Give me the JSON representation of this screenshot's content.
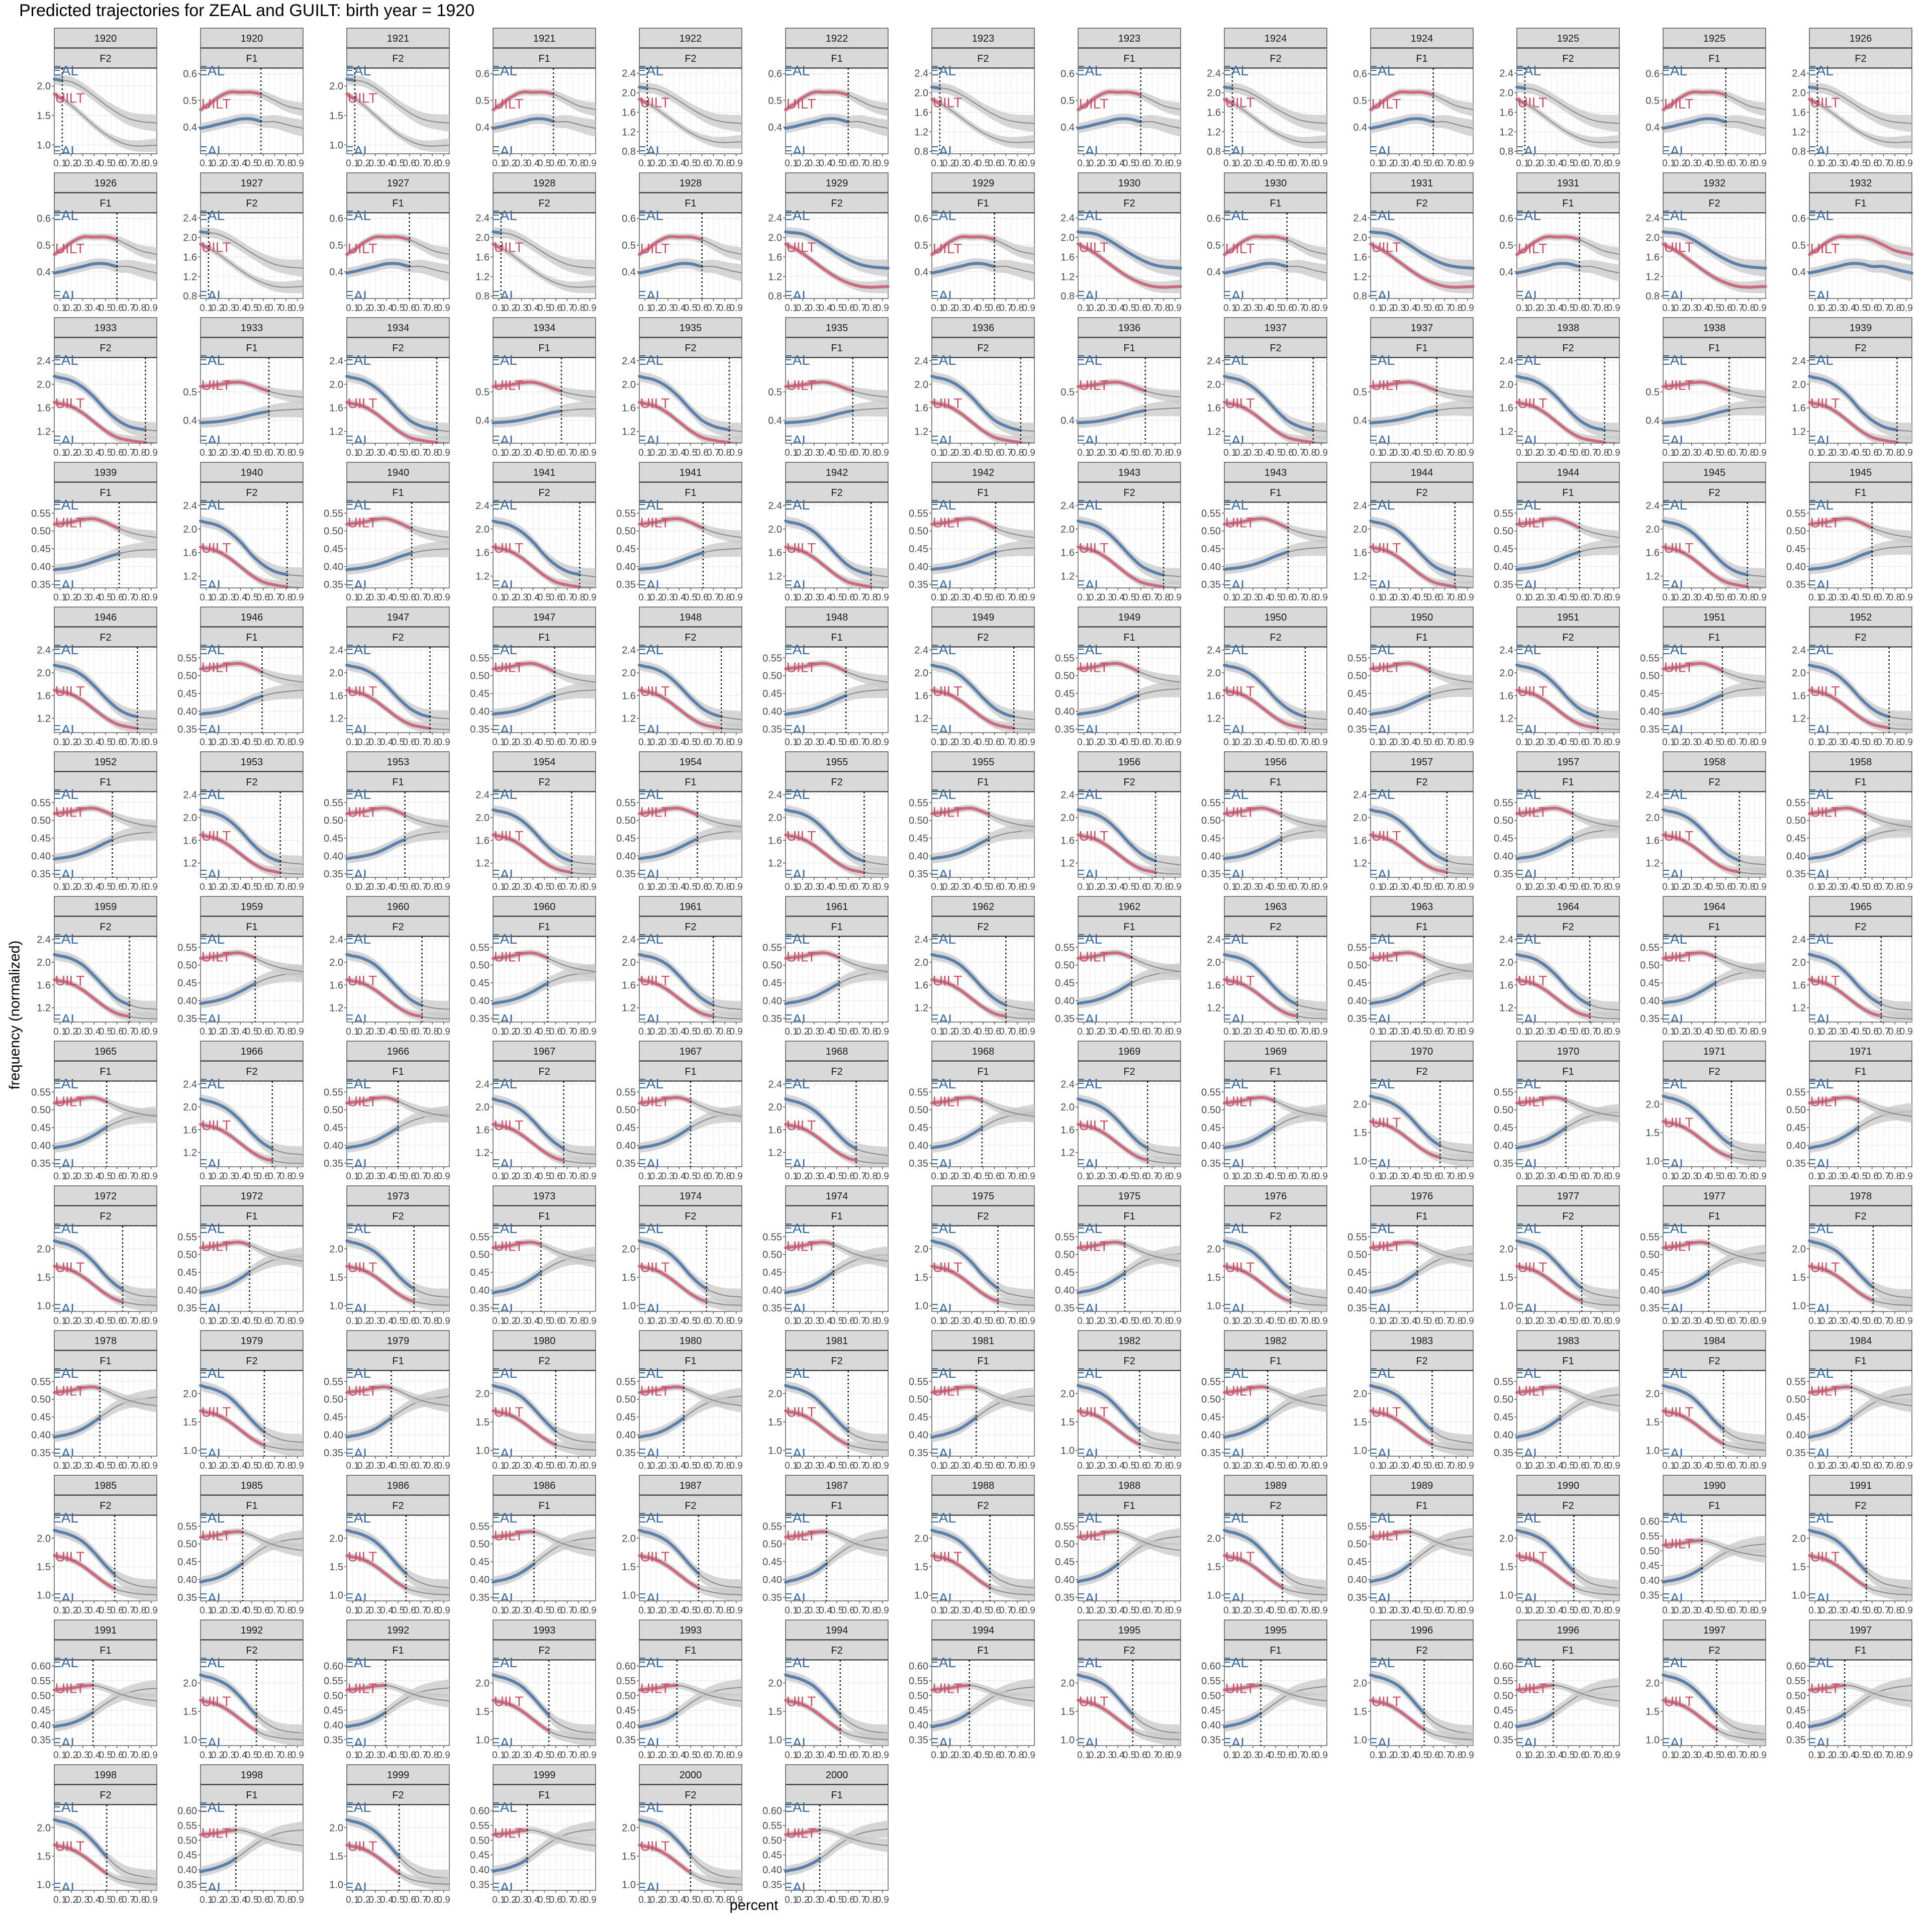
{
  "title": "Predicted trajectories for ZEAL and GUILT: birth year = 1920",
  "xlabel": "percent",
  "ylabel": "frequency (normalized)",
  "colors": {
    "zeal": "#3b6aa0",
    "guilt": "#c8506a",
    "ribbon": "#c8c8c8",
    "strip": "#d9d9d9",
    "grid": "#ebebeb"
  },
  "series_labels": {
    "zeal": "ZEAL",
    "guilt": "GUILT"
  },
  "chart_data": {
    "type": "line",
    "x_ticks": [
      0.1,
      0.2,
      0.3,
      0.4,
      0.5,
      0.6,
      0.7,
      0.8,
      0.9
    ],
    "x_tick_labels": [
      "0.1",
      "0.2",
      "0.3",
      "0.4",
      "0.5",
      "0.6",
      "0.7",
      "0.8",
      "0.9"
    ],
    "xlim": [
      0.05,
      0.95
    ],
    "facets": [
      {
        "year": "1920",
        "formant": "F2",
        "ylim": [
          0.85,
          2.3
        ],
        "yticks": [
          "1.0",
          "1.5",
          "2.0"
        ],
        "zeal": [
          2.1,
          2.07,
          1.97,
          1.83,
          1.68,
          1.55,
          1.45,
          1.4,
          1.38
        ],
        "guilt": [
          1.8,
          1.67,
          1.5,
          1.33,
          1.18,
          1.07,
          1.0,
          0.98,
          0.99
        ],
        "cutoff": 0.12
      },
      {
        "year": "1920",
        "formant": "F1",
        "ylim": [
          0.3,
          0.62
        ],
        "yticks": [
          "0.4",
          "0.5",
          "0.6"
        ],
        "zeal": [
          0.4,
          0.41,
          0.42,
          0.43,
          0.43,
          0.42,
          0.42,
          0.41,
          0.4
        ],
        "guilt": [
          0.48,
          0.51,
          0.53,
          0.53,
          0.53,
          0.52,
          0.5,
          0.48,
          0.47
        ],
        "cutoff": 0.58
      },
      {
        "year": "1921",
        "formant": "F2",
        "ylim": [
          0.85,
          2.3
        ],
        "yticks": [
          "1.0",
          "1.5",
          "2.0"
        ],
        "zeal": [
          2.1,
          2.07,
          1.97,
          1.83,
          1.68,
          1.55,
          1.45,
          1.4,
          1.38
        ],
        "guilt": [
          1.8,
          1.67,
          1.5,
          1.33,
          1.18,
          1.07,
          1.0,
          0.98,
          0.99
        ],
        "cutoff": 0.12
      },
      {
        "year": "1921",
        "formant": "F1",
        "ylim": [
          0.3,
          0.62
        ],
        "yticks": [
          "0.4",
          "0.5",
          "0.6"
        ],
        "zeal": [
          0.4,
          0.41,
          0.42,
          0.43,
          0.43,
          0.42,
          0.42,
          0.41,
          0.4
        ],
        "guilt": [
          0.48,
          0.51,
          0.53,
          0.53,
          0.53,
          0.52,
          0.5,
          0.48,
          0.47
        ],
        "cutoff": 0.58
      },
      {
        "year": "1922",
        "formant": "F2",
        "ylim": [
          0.75,
          2.5
        ],
        "yticks": [
          "0.8",
          "1.2",
          "1.6",
          "2.0",
          "2.4"
        ],
        "zeal": [
          2.1,
          2.07,
          1.97,
          1.83,
          1.68,
          1.55,
          1.45,
          1.4,
          1.38
        ],
        "guilt": [
          1.8,
          1.67,
          1.5,
          1.33,
          1.18,
          1.07,
          1.0,
          0.98,
          0.99
        ],
        "cutoff": 0.12
      },
      {
        "year": "1922",
        "formant": "F1",
        "ylim": [
          0.3,
          0.62
        ],
        "yticks": [
          "0.4",
          "0.5",
          "0.6"
        ],
        "zeal": [
          0.4,
          0.41,
          0.42,
          0.43,
          0.43,
          0.42,
          0.42,
          0.41,
          0.4
        ],
        "guilt": [
          0.48,
          0.51,
          0.53,
          0.53,
          0.53,
          0.52,
          0.5,
          0.48,
          0.47
        ],
        "cutoff": 0.6
      },
      {
        "year": "1923",
        "formant": "F2",
        "ylim": [
          0.75,
          2.5
        ],
        "yticks": [
          "0.8",
          "1.2",
          "1.6",
          "2.0",
          "2.4"
        ],
        "zeal": [
          2.1,
          2.07,
          1.97,
          1.83,
          1.68,
          1.55,
          1.45,
          1.4,
          1.38
        ],
        "guilt": [
          1.8,
          1.67,
          1.5,
          1.33,
          1.18,
          1.07,
          1.0,
          0.98,
          0.99
        ],
        "cutoff": 0.12
      },
      {
        "year": "1923",
        "formant": "F1",
        "ylim": [
          0.3,
          0.62
        ],
        "yticks": [
          "0.4",
          "0.5",
          "0.6"
        ],
        "zeal": [
          0.4,
          0.41,
          0.42,
          0.43,
          0.43,
          0.42,
          0.42,
          0.41,
          0.4
        ],
        "guilt": [
          0.48,
          0.51,
          0.53,
          0.53,
          0.53,
          0.52,
          0.5,
          0.48,
          0.47
        ],
        "cutoff": 0.6
      },
      {
        "year": "1924",
        "formant": "F2",
        "ylim": [
          0.75,
          2.5
        ],
        "yticks": [
          "0.8",
          "1.2",
          "1.6",
          "2.0",
          "2.4"
        ],
        "zeal": [
          2.1,
          2.07,
          1.97,
          1.83,
          1.68,
          1.55,
          1.45,
          1.4,
          1.38
        ],
        "guilt": [
          1.8,
          1.67,
          1.5,
          1.33,
          1.18,
          1.07,
          1.0,
          0.98,
          0.99
        ],
        "cutoff": 0.12
      },
      {
        "year": "1924",
        "formant": "F1",
        "ylim": [
          0.3,
          0.62
        ],
        "yticks": [
          "0.4",
          "0.5",
          "0.6"
        ],
        "zeal": [
          0.4,
          0.41,
          0.42,
          0.43,
          0.43,
          0.42,
          0.42,
          0.41,
          0.4
        ],
        "guilt": [
          0.48,
          0.51,
          0.53,
          0.53,
          0.53,
          0.52,
          0.5,
          0.48,
          0.47
        ],
        "cutoff": 0.6
      },
      {
        "year": "1925",
        "formant": "F2",
        "ylim": [
          0.75,
          2.5
        ],
        "yticks": [
          "0.8",
          "1.2",
          "1.6",
          "2.0",
          "2.4"
        ],
        "zeal": [
          2.1,
          2.07,
          1.97,
          1.83,
          1.68,
          1.55,
          1.45,
          1.4,
          1.38
        ],
        "guilt": [
          1.8,
          1.67,
          1.5,
          1.33,
          1.18,
          1.07,
          1.0,
          0.98,
          0.99
        ],
        "cutoff": 0.12
      },
      {
        "year": "1925",
        "formant": "F1",
        "ylim": [
          0.3,
          0.62
        ],
        "yticks": [
          "0.4",
          "0.5",
          "0.6"
        ],
        "zeal": [
          0.4,
          0.41,
          0.42,
          0.43,
          0.43,
          0.42,
          0.42,
          0.41,
          0.4
        ],
        "guilt": [
          0.48,
          0.51,
          0.53,
          0.53,
          0.53,
          0.52,
          0.5,
          0.48,
          0.47
        ],
        "cutoff": 0.6
      },
      {
        "year": "1926",
        "formant": "F2",
        "ylim": [
          0.75,
          2.5
        ],
        "yticks": [
          "0.8",
          "1.2",
          "1.6",
          "2.0",
          "2.4"
        ],
        "zeal": [
          2.1,
          2.07,
          1.97,
          1.83,
          1.68,
          1.55,
          1.45,
          1.4,
          1.38
        ],
        "guilt": [
          1.8,
          1.67,
          1.5,
          1.33,
          1.18,
          1.07,
          1.0,
          0.98,
          0.99
        ],
        "cutoff": 0.12
      },
      {
        "year": "1926",
        "formant": "F1",
        "ylim": [
          0.3,
          0.62
        ],
        "yticks": [
          "0.4",
          "0.5",
          "0.6"
        ],
        "zeal": [
          0.4,
          0.41,
          0.42,
          0.43,
          0.43,
          0.42,
          0.42,
          0.41,
          0.4
        ],
        "guilt": [
          0.48,
          0.51,
          0.53,
          0.53,
          0.53,
          0.52,
          0.5,
          0.48,
          0.47
        ],
        "cutoff": 0.6
      },
      {
        "year": "1927",
        "formant": "F2",
        "ylim": [
          0.75,
          2.5
        ],
        "yticks": [
          "0.8",
          "1.2",
          "1.6",
          "2.0",
          "2.4"
        ],
        "zeal": [
          2.1,
          2.07,
          1.97,
          1.83,
          1.68,
          1.55,
          1.45,
          1.4,
          1.38
        ],
        "guilt": [
          1.8,
          1.67,
          1.5,
          1.33,
          1.18,
          1.07,
          1.0,
          0.98,
          0.99
        ],
        "cutoff": 0.12
      },
      {
        "year": "1927",
        "formant": "F1",
        "ylim": [
          0.3,
          0.62
        ],
        "yticks": [
          "0.4",
          "0.5",
          "0.6"
        ],
        "zeal": [
          0.4,
          0.41,
          0.42,
          0.43,
          0.43,
          0.42,
          0.42,
          0.41,
          0.4
        ],
        "guilt": [
          0.48,
          0.51,
          0.53,
          0.53,
          0.53,
          0.52,
          0.5,
          0.48,
          0.47
        ],
        "cutoff": 0.6
      },
      {
        "year": "1928",
        "formant": "F2",
        "ylim": [
          0.75,
          2.5
        ],
        "yticks": [
          "0.8",
          "1.2",
          "1.6",
          "2.0",
          "2.4"
        ],
        "zeal": [
          2.1,
          2.07,
          1.97,
          1.83,
          1.68,
          1.55,
          1.45,
          1.4,
          1.38
        ],
        "guilt": [
          1.8,
          1.67,
          1.5,
          1.33,
          1.18,
          1.07,
          1.0,
          0.98,
          0.99
        ],
        "cutoff": 0.12
      },
      {
        "year": "1928",
        "formant": "F1",
        "ylim": [
          0.3,
          0.62
        ],
        "yticks": [
          "0.4",
          "0.5",
          "0.6"
        ],
        "zeal": [
          0.4,
          0.41,
          0.42,
          0.43,
          0.43,
          0.42,
          0.42,
          0.41,
          0.4
        ],
        "guilt": [
          0.48,
          0.51,
          0.53,
          0.53,
          0.53,
          0.52,
          0.5,
          0.48,
          0.47
        ],
        "cutoff": 0.6
      },
      {
        "year": "1929",
        "formant": "F2",
        "ylim": [
          0.75,
          2.5
        ],
        "yticks": [
          "0.8",
          "1.2",
          "1.6",
          "2.0",
          "2.4"
        ],
        "zeal": [
          2.1,
          2.07,
          1.97,
          1.83,
          1.68,
          1.55,
          1.45,
          1.4,
          1.38
        ],
        "guilt": [
          1.8,
          1.67,
          1.5,
          1.33,
          1.18,
          1.07,
          1.0,
          0.98,
          0.99
        ],
        "cutoff": null
      },
      {
        "year": "1929",
        "formant": "F1",
        "ylim": [
          0.3,
          0.62
        ],
        "yticks": [
          "0.4",
          "0.5",
          "0.6"
        ],
        "zeal": [
          0.4,
          0.41,
          0.42,
          0.43,
          0.43,
          0.42,
          0.42,
          0.41,
          0.4
        ],
        "guilt": [
          0.48,
          0.51,
          0.53,
          0.53,
          0.53,
          0.52,
          0.5,
          0.48,
          0.47
        ],
        "cutoff": 0.6
      },
      {
        "year": "1930",
        "formant": "F2",
        "ylim": [
          0.75,
          2.5
        ],
        "yticks": [
          "0.8",
          "1.2",
          "1.6",
          "2.0",
          "2.4"
        ],
        "zeal": [
          2.1,
          2.07,
          1.97,
          1.83,
          1.68,
          1.55,
          1.45,
          1.4,
          1.38
        ],
        "guilt": [
          1.8,
          1.67,
          1.5,
          1.33,
          1.18,
          1.07,
          1.0,
          0.98,
          0.99
        ],
        "cutoff": null
      },
      {
        "year": "1930",
        "formant": "F1",
        "ylim": [
          0.3,
          0.62
        ],
        "yticks": [
          "0.4",
          "0.5",
          "0.6"
        ],
        "zeal": [
          0.4,
          0.41,
          0.42,
          0.43,
          0.43,
          0.42,
          0.42,
          0.41,
          0.4
        ],
        "guilt": [
          0.48,
          0.51,
          0.53,
          0.53,
          0.53,
          0.52,
          0.5,
          0.48,
          0.47
        ],
        "cutoff": 0.6
      },
      {
        "year": "1931",
        "formant": "F2",
        "ylim": [
          0.75,
          2.5
        ],
        "yticks": [
          "0.8",
          "1.2",
          "1.6",
          "2.0",
          "2.4"
        ],
        "zeal": [
          2.1,
          2.07,
          1.97,
          1.83,
          1.68,
          1.55,
          1.45,
          1.4,
          1.38
        ],
        "guilt": [
          1.8,
          1.67,
          1.5,
          1.33,
          1.18,
          1.07,
          1.0,
          0.98,
          0.99
        ],
        "cutoff": null
      },
      {
        "year": "1931",
        "formant": "F1",
        "ylim": [
          0.3,
          0.62
        ],
        "yticks": [
          "0.4",
          "0.5",
          "0.6"
        ],
        "zeal": [
          0.4,
          0.41,
          0.42,
          0.43,
          0.43,
          0.42,
          0.42,
          0.41,
          0.4
        ],
        "guilt": [
          0.48,
          0.51,
          0.53,
          0.53,
          0.53,
          0.52,
          0.5,
          0.48,
          0.47
        ],
        "cutoff": 0.6
      },
      {
        "year": "1932",
        "formant": "F2",
        "ylim": [
          0.75,
          2.5
        ],
        "yticks": [
          "0.8",
          "1.2",
          "1.6",
          "2.0",
          "2.4"
        ],
        "zeal": [
          2.1,
          2.07,
          1.97,
          1.83,
          1.68,
          1.55,
          1.45,
          1.4,
          1.38
        ],
        "guilt": [
          1.8,
          1.67,
          1.5,
          1.33,
          1.18,
          1.07,
          1.0,
          0.98,
          0.99
        ],
        "cutoff": null
      },
      {
        "year": "1932",
        "formant": "F1",
        "ylim": [
          0.3,
          0.62
        ],
        "yticks": [
          "0.4",
          "0.5",
          "0.6"
        ],
        "zeal": [
          0.4,
          0.41,
          0.42,
          0.43,
          0.43,
          0.42,
          0.42,
          0.41,
          0.4
        ],
        "guilt": [
          0.48,
          0.51,
          0.53,
          0.53,
          0.53,
          0.52,
          0.5,
          0.48,
          0.47
        ],
        "cutoff": null
      }
    ],
    "auto_facets": {
      "note_free": true,
      "years_from": 1933,
      "years_to": 2000,
      "pattern": [
        "F2",
        "F1"
      ]
    }
  }
}
